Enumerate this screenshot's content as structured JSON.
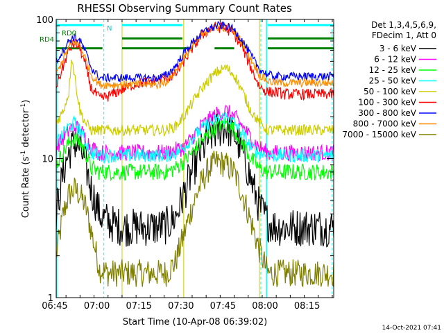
{
  "chart_data": {
    "type": "line",
    "title": "RHESSI Observing Summary Count Rates",
    "xlabel": "Start Time (10-Apr-08 06:39:02)",
    "ylabel_main": "Count Rate (s",
    "ylabel_sup1": "-1",
    "ylabel_mid": " detector",
    "ylabel_sup2": "-1",
    "ylabel_end": ")",
    "yscale": "log",
    "ylim": [
      1,
      100
    ],
    "xlim_minutes": [
      6.5,
      105.5
    ],
    "x_tick_labels": [
      "06:45",
      "07:00",
      "07:15",
      "07:30",
      "07:45",
      "08:00",
      "08:15"
    ],
    "x_tick_minutes": [
      6,
      21,
      36,
      51,
      66,
      81,
      96
    ],
    "y_tick_labels": [
      "1",
      "10",
      "100"
    ],
    "y_tick_values": [
      1,
      10,
      100
    ],
    "legend_header_1": "Det 1,3,4,5,6,9,",
    "legend_header_2": "FDecim 1, Att 0",
    "series": [
      {
        "name": "3 - 6 keV",
        "color": "#000000",
        "noise": 0.14,
        "x": [
          6.5,
          9,
          11,
          13,
          15,
          17,
          19,
          22,
          25,
          28,
          31,
          34,
          37,
          40,
          43,
          46,
          49,
          52,
          55,
          58,
          61,
          64,
          67,
          70,
          73,
          76,
          79,
          82,
          85,
          88,
          91,
          94,
          97,
          100,
          103,
          105.5
        ],
        "y": [
          4,
          8,
          11,
          13,
          12,
          9,
          6,
          4,
          3.5,
          3.3,
          3.2,
          3.2,
          3.2,
          3.2,
          3.2,
          3.3,
          3.8,
          5.5,
          8,
          11,
          14,
          16,
          17,
          15,
          11,
          7,
          4.5,
          3.5,
          3.2,
          3.2,
          3.2,
          3.2,
          3.2,
          3.2,
          3.2,
          3.2
        ]
      },
      {
        "name": "6 - 12 keV",
        "color": "#ff00ff",
        "noise": 0.06,
        "x": [
          6.5,
          9,
          11,
          13,
          15,
          17,
          19,
          22,
          25,
          28,
          31,
          34,
          37,
          40,
          43,
          46,
          49,
          52,
          55,
          58,
          61,
          64,
          67,
          70,
          73,
          76,
          79,
          82,
          85,
          88,
          91,
          94,
          97,
          100,
          103,
          105.5
        ],
        "y": [
          12,
          14,
          16,
          17,
          16,
          14,
          12,
          11,
          11,
          11,
          11,
          11,
          11,
          11,
          11,
          11,
          11.5,
          12,
          14,
          17,
          19,
          21,
          22,
          20,
          17,
          14,
          12,
          11,
          11,
          11,
          11,
          11,
          11,
          11,
          11,
          11
        ]
      },
      {
        "name": "12 - 25 keV",
        "color": "#00ff00",
        "noise": 0.06,
        "x": [
          6.5,
          9,
          11,
          13,
          15,
          17,
          19,
          22,
          25,
          28,
          31,
          34,
          37,
          40,
          43,
          46,
          49,
          52,
          55,
          58,
          61,
          64,
          67,
          70,
          73,
          76,
          79,
          82,
          85,
          88,
          91,
          94,
          97,
          100,
          103,
          105.5
        ],
        "y": [
          9,
          11,
          13,
          14,
          13,
          11,
          8.5,
          8,
          8,
          8,
          8,
          8,
          8,
          8,
          8,
          8,
          8.5,
          9.5,
          11,
          13,
          15,
          17,
          18,
          16,
          13,
          10,
          8.5,
          8,
          8,
          8,
          8,
          8,
          8,
          8,
          8,
          8
        ]
      },
      {
        "name": "25 - 50 keV",
        "color": "#00ffff",
        "noise": 0.05,
        "x": [
          6.5,
          9,
          11,
          13,
          15,
          17,
          19,
          22,
          25,
          28,
          31,
          34,
          37,
          40,
          43,
          46,
          49,
          52,
          55,
          58,
          61,
          64,
          67,
          70,
          73,
          76,
          79,
          82,
          85,
          88,
          91,
          94,
          97,
          100,
          103,
          105.5
        ],
        "y": [
          13,
          15,
          17,
          18,
          16,
          13,
          11,
          10.5,
          10.5,
          10.5,
          10.5,
          10.5,
          10.5,
          10.5,
          10.5,
          10.5,
          11,
          12,
          14,
          16,
          18,
          19,
          20,
          18,
          15,
          12,
          11,
          10.5,
          10.5,
          10.5,
          10.5,
          10.5,
          10.5,
          10.5,
          10.5,
          10.5
        ]
      },
      {
        "name": "50 - 100 keV",
        "color": "#cccc00",
        "noise": 0.04,
        "x": [
          6.5,
          9,
          11,
          12,
          13,
          15,
          17,
          19,
          22,
          25,
          28,
          31,
          34,
          37,
          40,
          43,
          46,
          49,
          52,
          55,
          58,
          61,
          64,
          67,
          70,
          73,
          76,
          79,
          82,
          85,
          88,
          91,
          94,
          97,
          100,
          103,
          105.5
        ],
        "y": [
          18,
          22,
          30,
          55,
          40,
          22,
          18,
          16,
          16,
          16,
          16,
          16,
          16,
          16,
          16,
          16,
          16,
          17,
          20,
          25,
          31,
          37,
          42,
          45,
          40,
          30,
          22,
          18,
          16,
          16,
          16,
          16,
          16,
          16,
          16,
          16,
          16
        ]
      },
      {
        "name": "100 - 300 keV",
        "color": "#ff0000",
        "noise": 0.04,
        "x": [
          6.5,
          9,
          11,
          13,
          15,
          17,
          19,
          22,
          25,
          28,
          31,
          34,
          37,
          40,
          43,
          46,
          49,
          52,
          55,
          58,
          61,
          64,
          67,
          70,
          73,
          76,
          79,
          82,
          85,
          88,
          91,
          94,
          97,
          100,
          103,
          105.5
        ],
        "y": [
          33,
          46,
          60,
          68,
          62,
          46,
          32,
          27,
          28,
          30,
          32,
          34,
          35,
          36,
          37,
          38,
          40,
          50,
          62,
          75,
          85,
          88,
          86,
          78,
          62,
          45,
          33,
          30,
          30,
          29,
          29,
          29,
          29,
          29,
          29,
          29
        ]
      },
      {
        "name": "300 - 800 keV",
        "color": "#0000ff",
        "noise": 0.03,
        "x": [
          6.5,
          9,
          11,
          13,
          15,
          17,
          19,
          22,
          25,
          28,
          31,
          34,
          37,
          40,
          43,
          46,
          49,
          52,
          55,
          58,
          61,
          64,
          67,
          70,
          73,
          76,
          79,
          82,
          85,
          88,
          91,
          94,
          97,
          100,
          103,
          105.5
        ],
        "y": [
          50,
          60,
          70,
          75,
          70,
          58,
          45,
          38,
          38,
          38,
          38,
          38,
          38,
          38,
          38,
          40,
          46,
          57,
          68,
          78,
          86,
          90,
          90,
          84,
          70,
          55,
          44,
          40,
          39,
          39,
          39,
          39,
          39,
          39,
          39,
          39
        ]
      },
      {
        "name": "800 - 7000 keV",
        "color": "#ff8c00",
        "noise": 0.03,
        "x": [
          6.5,
          9,
          11,
          13,
          15,
          17,
          19,
          22,
          25,
          28,
          31,
          34,
          37,
          40,
          43,
          46,
          49,
          52,
          55,
          58,
          61,
          64,
          67,
          70,
          73,
          76,
          79,
          82,
          85,
          88,
          91,
          94,
          97,
          100,
          103,
          105.5
        ],
        "y": [
          40,
          52,
          63,
          70,
          65,
          52,
          40,
          34,
          34,
          34,
          34,
          34,
          34,
          34,
          34,
          36,
          42,
          52,
          63,
          75,
          84,
          88,
          88,
          82,
          68,
          52,
          40,
          36,
          35,
          35,
          35,
          35,
          35,
          35,
          35,
          35
        ]
      },
      {
        "name": "7000 - 15000 keV",
        "color": "#808000",
        "noise": 0.1,
        "x": [
          6.5,
          9,
          11,
          13,
          15,
          17,
          19,
          22,
          25,
          28,
          31,
          34,
          37,
          40,
          43,
          46,
          49,
          52,
          55,
          58,
          61,
          64,
          67,
          70,
          73,
          76,
          79,
          82,
          85,
          88,
          91,
          94,
          97,
          100,
          103,
          105.5
        ],
        "y": [
          2,
          4,
          5.5,
          6,
          5.5,
          4.5,
          3,
          1.6,
          1.5,
          1.5,
          1.5,
          1.5,
          1.5,
          1.5,
          1.5,
          1.5,
          1.8,
          2.8,
          4.5,
          6.5,
          8.5,
          9.5,
          9,
          8,
          5.5,
          3.5,
          2.2,
          1.5,
          1.5,
          1.5,
          1.5,
          1.5,
          1.5,
          1.5,
          1.5,
          1.5
        ]
      }
    ],
    "flag_labels": [
      "RD0",
      "N",
      "RD4"
    ],
    "flag_bars": [
      {
        "flag": "RD0",
        "color": "#00ffff",
        "y": 91,
        "x_ranges": [
          [
            6.5,
            23
          ],
          [
            30,
            51.5
          ],
          [
            82,
            105.5
          ]
        ]
      },
      {
        "flag": "RD4",
        "color": "#008000",
        "y": 62,
        "x_ranges": [
          [
            6.5,
            23
          ],
          [
            30,
            55
          ],
          [
            63,
            70
          ],
          [
            82,
            105.5
          ]
        ]
      },
      {
        "flag": "RD0b",
        "color": "#008000",
        "y": 73,
        "x_ranges": [
          [
            30,
            51.5
          ],
          [
            82,
            105.5
          ]
        ]
      }
    ],
    "vlines_cyan_solid": [
      6.7,
      81.5
    ],
    "vlines_cyan_dashed": [
      23.5,
      79.5,
      105
    ],
    "vlines_yellow": [
      6.7,
      30,
      52,
      79
    ]
  },
  "footer_date": "14-Oct-2021 07:41"
}
